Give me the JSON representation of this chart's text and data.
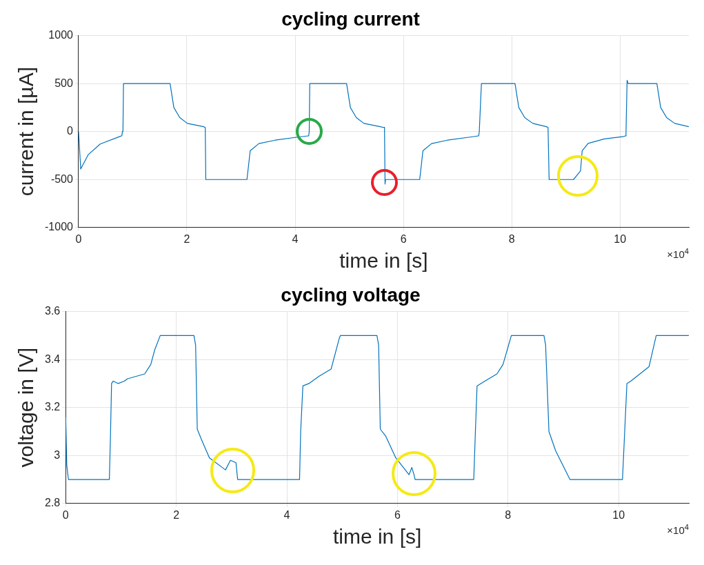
{
  "chart_data": [
    {
      "type": "line",
      "title": "cycling current",
      "xlabel": "time in [s]",
      "ylabel": "current in [µA]",
      "xlim": [
        0,
        11.27
      ],
      "xticks": [
        0,
        2,
        4,
        6,
        8,
        10
      ],
      "ylim": [
        -1000,
        1000
      ],
      "yticks": [
        -1000,
        -500,
        0,
        500,
        1000
      ],
      "grid": true,
      "marker": "none",
      "annotations": [
        "×10$^{4}$"
      ],
      "series": [
        {
          "color": "#0072bd",
          "x": [
            0,
            0.04,
            0.18,
            0.4,
            0.77,
            0.8,
            0.81,
            0.82,
            0.83,
            1.69,
            1.76,
            1.87,
            2.01,
            2.31,
            2.34,
            2.35,
            3.11,
            3.17,
            3.33,
            3.63,
            4.07,
            4.21,
            4.25,
            4.26,
            4.27,
            4.95,
            5.02,
            5.13,
            5.27,
            5.57,
            5.63,
            5.65,
            5.66,
            5.67,
            6.3,
            6.36,
            6.52,
            6.81,
            7.25,
            7.36,
            7.39,
            7.4,
            7.44,
            8.06,
            8.13,
            8.24,
            8.39,
            8.64,
            8.67,
            8.69,
            9.14,
            9.27,
            9.3,
            9.41,
            9.71,
            10.07,
            10.1,
            10.11,
            10.13,
            10.15,
            10.68,
            10.75,
            10.86,
            11.01,
            11.27
          ],
          "values": [
            0,
            -390,
            -240,
            -130,
            -50,
            -43,
            0,
            0,
            500,
            500,
            250,
            145,
            85,
            51,
            43,
            -500,
            -500,
            -200,
            -125,
            -90,
            -56,
            -47,
            -45,
            0,
            500,
            500,
            250,
            145,
            85,
            51,
            43,
            43,
            -547,
            -500,
            -500,
            -200,
            -125,
            -90,
            -56,
            -47,
            -45,
            0,
            500,
            500,
            250,
            145,
            85,
            51,
            43,
            -500,
            -500,
            -410,
            -200,
            -124,
            -77,
            -51,
            -45,
            0,
            534,
            500,
            500,
            250,
            145,
            85,
            51
          ]
        }
      ]
    },
    {
      "type": "line",
      "title": "cycling voltage",
      "xlabel": "time in [s]",
      "ylabel": "voltage in [V]",
      "xlim": [
        0,
        11.27
      ],
      "xticks": [
        0,
        2,
        4,
        6,
        8,
        10
      ],
      "ylim": [
        2.8,
        3.6
      ],
      "yticks": [
        2.8,
        3,
        3.2,
        3.4,
        3.6
      ],
      "grid": true,
      "marker": "none",
      "annotations": [
        "×10$^{4}$"
      ],
      "series": [
        {
          "color": "#0072bd",
          "x": [
            0,
            0.02,
            0.05,
            0.79,
            0.81,
            0.83,
            0.86,
            0.95,
            1.06,
            1.12,
            1.43,
            1.54,
            1.61,
            1.71,
            2.32,
            2.35,
            2.38,
            2.45,
            2.6,
            2.89,
            2.98,
            3.08,
            3.11,
            4.23,
            4.25,
            4.29,
            4.4,
            4.58,
            4.8,
            4.95,
            4.97,
            5.63,
            5.66,
            5.69,
            5.79,
            5.97,
            6.21,
            6.26,
            6.3,
            6.32,
            7.38,
            7.41,
            7.44,
            7.58,
            7.8,
            7.91,
            8.06,
            8.65,
            8.68,
            8.74,
            8.86,
            9.12,
            10.07,
            10.11,
            10.15,
            10.22,
            10.55,
            10.68,
            11.27
          ],
          "values": [
            3.16,
            2.96,
            2.9,
            2.9,
            3.08,
            3.3,
            3.31,
            3.3,
            3.31,
            3.32,
            3.34,
            3.38,
            3.44,
            3.5,
            3.5,
            3.46,
            3.11,
            3.07,
            2.99,
            2.94,
            2.98,
            2.97,
            2.9,
            2.9,
            3.1,
            3.29,
            3.3,
            3.33,
            3.36,
            3.49,
            3.5,
            3.5,
            3.46,
            3.11,
            3.08,
            2.99,
            2.92,
            2.95,
            2.92,
            2.9,
            2.9,
            3.1,
            3.29,
            3.31,
            3.34,
            3.38,
            3.5,
            3.5,
            3.46,
            3.1,
            3.02,
            2.9,
            2.9,
            3.1,
            3.3,
            3.31,
            3.37,
            3.5,
            3.5
          ]
        }
      ]
    }
  ]
}
